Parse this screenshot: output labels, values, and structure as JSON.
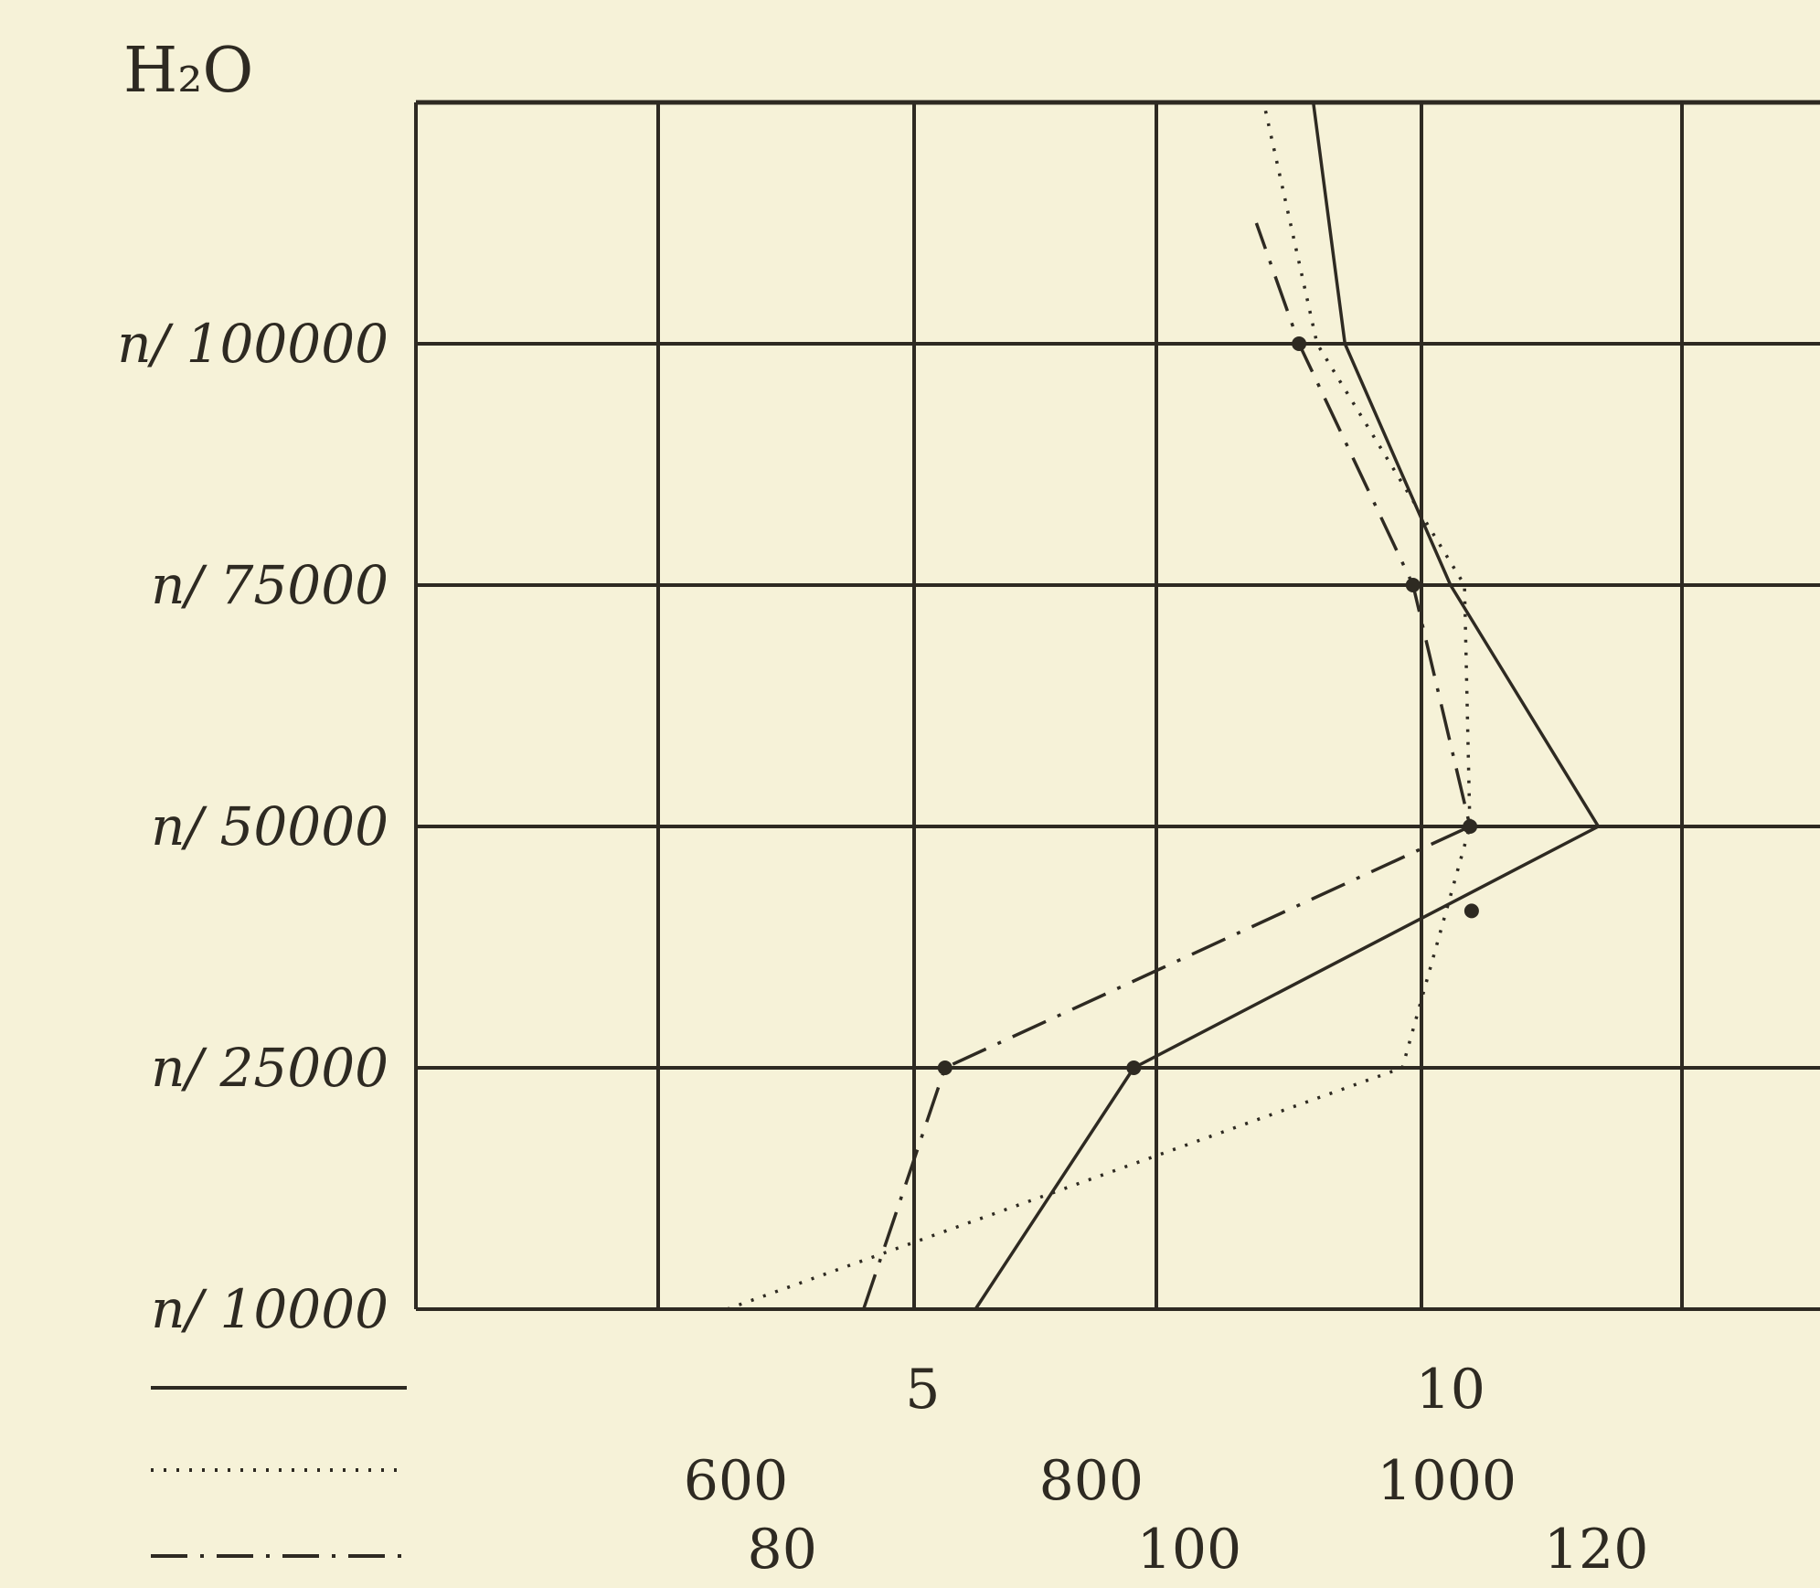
{
  "chart_data": {
    "type": "line",
    "title": "H₂O",
    "grid": true,
    "y_axis": {
      "labels": [
        "n/ 10000",
        "n/ 25000",
        "n/ 50000",
        "n/ 75000",
        "n/ 100000"
      ],
      "positions": [
        0,
        1,
        2,
        3,
        4
      ],
      "ylim": [
        0,
        5
      ]
    },
    "x_axes": [
      {
        "style": "solid",
        "ticks": [
          {
            "value": 5,
            "label": "5"
          },
          {
            "value": 10,
            "label": "10"
          }
        ],
        "xlim": [
          0.2,
          13.5
        ]
      },
      {
        "style": "dotted",
        "ticks": [
          {
            "value": 600,
            "label": "600"
          },
          {
            "value": 800,
            "label": "800"
          },
          {
            "value": 1000,
            "label": "1000"
          }
        ],
        "xlim": [
          420,
          1210
        ]
      },
      {
        "style": "dash-dot",
        "ticks": [
          {
            "value": 80,
            "label": "80"
          },
          {
            "value": 100,
            "label": "100"
          },
          {
            "value": 120,
            "label": "120"
          }
        ],
        "xlim": [
          62,
          131
        ]
      }
    ],
    "series": [
      {
        "style": "solid",
        "axis": 0,
        "x": [
          5.5,
          7.0,
          11.4,
          10.0,
          9.0,
          8.7
        ],
        "y": [
          0,
          1,
          2,
          3,
          4,
          5
        ]
      },
      {
        "style": "dotted",
        "axis": 1,
        "x": [
          595,
          975,
          1013,
          1010,
          927,
          897
        ],
        "y": [
          0,
          1,
          2,
          3,
          4,
          5
        ]
      },
      {
        "style": "dash-dot",
        "axis": 2,
        "x": [
          84,
          88,
          113.8,
          111,
          105.4,
          103.3
        ],
        "y": [
          0,
          1,
          2,
          3,
          4,
          4.5
        ]
      }
    ],
    "markers": [
      {
        "series": 2,
        "x": 88,
        "y": 1
      },
      {
        "series": 0,
        "x": 7.0,
        "y": 1
      },
      {
        "series": 0,
        "x": 10.2,
        "y": 1.65
      },
      {
        "series": 2,
        "x": 113.8,
        "y": 2
      },
      {
        "series": 2,
        "x": 111,
        "y": 3
      },
      {
        "series": 2,
        "x": 105.4,
        "y": 4
      }
    ]
  }
}
